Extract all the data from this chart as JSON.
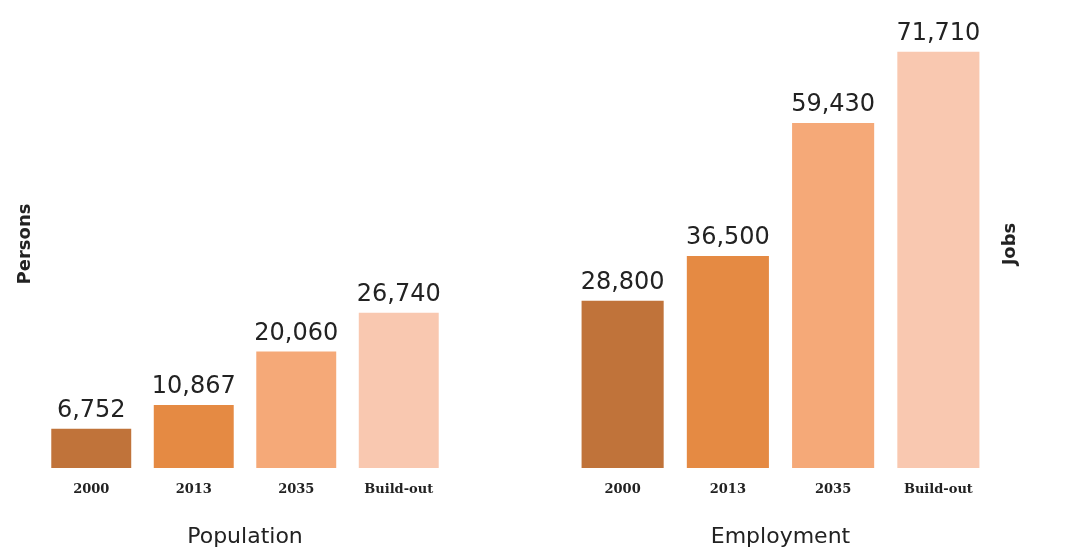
{
  "chart_data": [
    {
      "type": "bar",
      "categories": [
        "2000",
        "2013",
        "2035",
        "Build-out"
      ],
      "values": [
        6752,
        10867,
        20060,
        26740
      ],
      "value_labels": [
        "6,752",
        "10,867",
        "20,060",
        "26,740"
      ],
      "colors": [
        "#c0733a",
        "#e58a43",
        "#f5a978",
        "#f9c8b0"
      ],
      "xlabel": "Population",
      "ylabel": "Persons"
    },
    {
      "type": "bar",
      "categories": [
        "2000",
        "2013",
        "2035",
        "Build-out"
      ],
      "values": [
        28800,
        36500,
        59430,
        71710
      ],
      "value_labels": [
        "28,800",
        "36,500",
        "59,430",
        "71,710"
      ],
      "colors": [
        "#c0733a",
        "#e58a43",
        "#f5a978",
        "#f9c8b0"
      ],
      "xlabel": "Employment",
      "ylabel": "Jobs"
    }
  ]
}
